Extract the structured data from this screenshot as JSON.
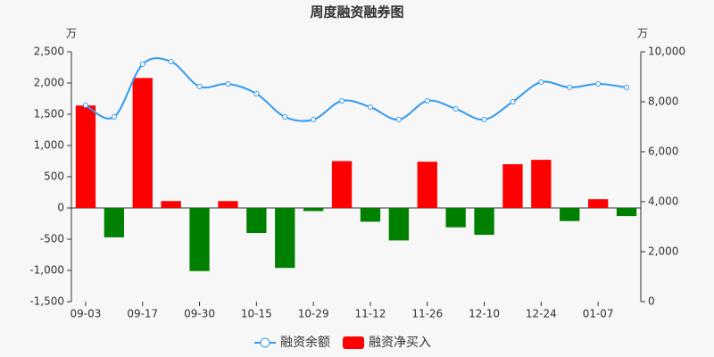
{
  "chart_data": {
    "type": "bar",
    "title": "周度融资融券图",
    "y_unit": "万",
    "y2_unit": "万",
    "categories": [
      "09-03",
      null,
      "09-17",
      null,
      "09-30",
      null,
      "10-15",
      null,
      "10-29",
      null,
      "11-12",
      null,
      "11-26",
      null,
      "12-10",
      null,
      "12-24",
      null,
      "01-07",
      null
    ],
    "series": [
      {
        "name": "融资余额",
        "type": "line",
        "axis": "y2",
        "color": "#3399ee",
        "values": [
          7857,
          7393,
          9500,
          9607,
          8607,
          8714,
          8321,
          7393,
          7286,
          8036,
          7786,
          7286,
          8036,
          7714,
          7286,
          8000,
          8786,
          8571,
          8714,
          8571
        ]
      },
      {
        "name": "融资净买入",
        "type": "bar",
        "color": "#ff0000",
        "negative_color": "#008000",
        "values": [
          1640,
          -470,
          2080,
          110,
          -1010,
          110,
          -400,
          -960,
          -50,
          750,
          -220,
          -520,
          740,
          -310,
          -430,
          700,
          770,
          -210,
          140,
          -130
        ]
      }
    ],
    "ylim": [
      -1500,
      2500
    ],
    "yticks": [
      {
        "value": -1500,
        "label": "-1,500"
      },
      {
        "value": -1000,
        "label": "-1,000"
      },
      -500,
      0,
      500,
      {
        "value": 1000,
        "label": "1,000"
      },
      {
        "value": 1500,
        "label": "1,500"
      },
      {
        "value": 2000,
        "label": "2,000"
      },
      {
        "value": 2500,
        "label": "2,500"
      }
    ],
    "y2lim": [
      0,
      10000
    ],
    "y2ticks": [
      0,
      {
        "value": 2000,
        "label": "2,000"
      },
      {
        "value": 4000,
        "label": "4,000"
      },
      {
        "value": 6000,
        "label": "6,000"
      },
      {
        "value": 8000,
        "label": "8,000"
      },
      {
        "value": 10000,
        "label": "10,000"
      }
    ]
  }
}
